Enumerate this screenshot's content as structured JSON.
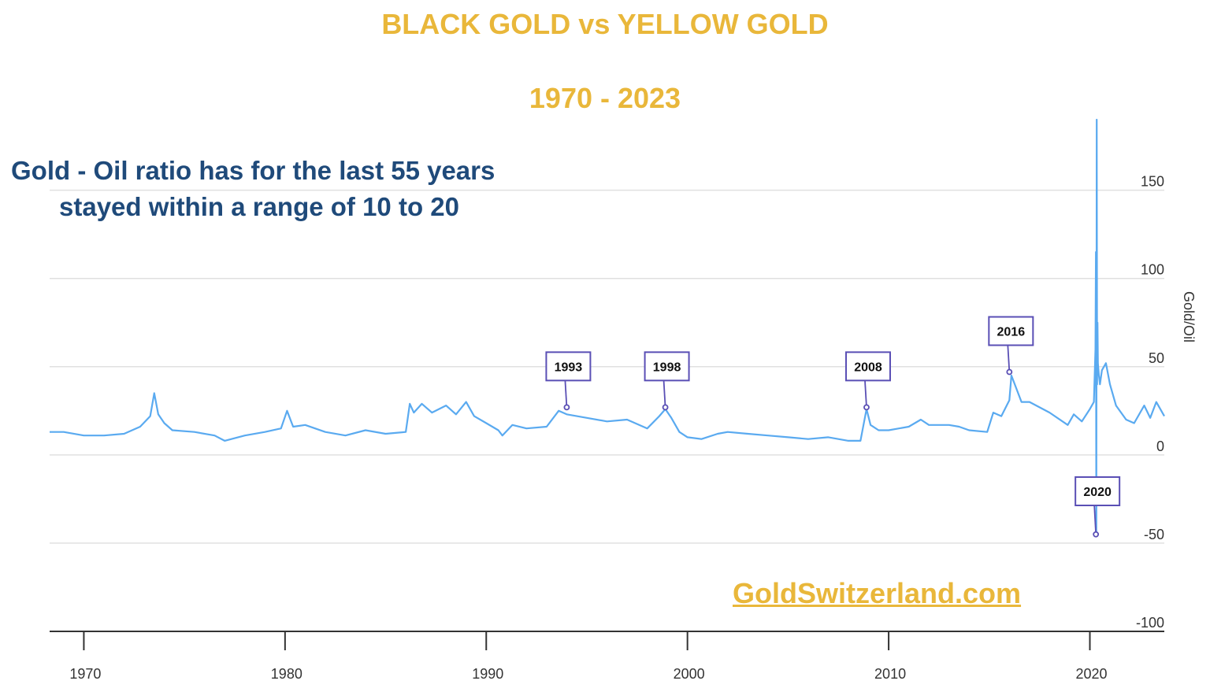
{
  "header": {
    "title": "BLACK GOLD vs YELLOW GOLD",
    "subtitle": "1970 - 2023"
  },
  "headline": {
    "line1": "Gold - Oil ratio has for the last 55 years",
    "line2": "stayed within a range of 10 to 20"
  },
  "brand": "GoldSwitzerland.com",
  "colors": {
    "title": "#e9b73a",
    "headline": "#1f4a7a",
    "series": "#5aaaf0",
    "annotation": "#5a4fb5",
    "grid": "#e0e0e0"
  },
  "chart_data": {
    "type": "line",
    "ylabel": "Gold/Oil",
    "xlim": [
      1968.3,
      2023.7
    ],
    "ylim": [
      -100,
      190
    ],
    "y_ticks": [
      150,
      100,
      50,
      0,
      -50,
      -100
    ],
    "x_ticks": [
      1970,
      1980,
      1990,
      2000,
      2010,
      2020
    ],
    "grid": true,
    "series": [
      {
        "name": "",
        "x": [
          1968.3,
          1969.0,
          1970.0,
          1971.0,
          1972.0,
          1972.8,
          1973.3,
          1973.5,
          1973.7,
          1974.0,
          1974.4,
          1975.5,
          1976.5,
          1977.0,
          1978.0,
          1979.0,
          1979.8,
          1980.1,
          1980.4,
          1981.0,
          1982.0,
          1983.0,
          1984.0,
          1985.0,
          1986.0,
          1986.2,
          1986.4,
          1986.8,
          1987.3,
          1988.0,
          1988.5,
          1989.0,
          1989.4,
          1990.0,
          1990.6,
          1990.8,
          1991.3,
          1992.0,
          1993.0,
          1993.6,
          1994.0,
          1995.0,
          1996.0,
          1997.0,
          1998.0,
          1998.6,
          1998.9,
          1999.2,
          1999.6,
          2000.0,
          2000.7,
          2001.5,
          2002.0,
          2003.0,
          2004.0,
          2005.0,
          2006.0,
          2007.0,
          2008.0,
          2008.6,
          2008.9,
          2009.1,
          2009.5,
          2010.0,
          2011.0,
          2011.6,
          2012.0,
          2013.0,
          2013.5,
          2014.0,
          2014.9,
          2015.2,
          2015.6,
          2016.0,
          2016.1,
          2016.6,
          2017.0,
          2018.0,
          2018.9,
          2019.2,
          2019.6,
          2020.0,
          2020.2,
          2020.28,
          2020.3,
          2020.32,
          2020.34,
          2020.36,
          2020.38,
          2020.4,
          2020.45,
          2020.5,
          2020.6,
          2020.8,
          2021.0,
          2021.3,
          2021.8,
          2022.2,
          2022.7,
          2023.0,
          2023.3,
          2023.7
        ],
        "y": [
          13,
          13,
          11,
          11,
          12,
          16,
          22,
          35,
          23,
          18,
          14,
          13,
          11,
          8,
          11,
          13,
          15,
          25,
          16,
          17,
          13,
          11,
          14,
          12,
          13,
          29,
          24,
          29,
          24,
          28,
          23,
          30,
          22,
          18,
          14,
          11,
          17,
          15,
          16,
          25,
          23,
          21,
          19,
          20,
          15,
          22,
          26,
          21,
          13,
          10,
          9,
          12,
          13,
          12,
          11,
          10,
          9,
          10,
          8,
          8,
          26,
          17,
          14,
          14,
          16,
          20,
          17,
          17,
          16,
          14,
          13,
          24,
          22,
          31,
          45,
          30,
          30,
          24,
          17,
          23,
          19,
          26,
          30,
          60,
          115,
          -45,
          190,
          40,
          75,
          52,
          45,
          40,
          48,
          52,
          40,
          28,
          20,
          18,
          28,
          21,
          30,
          22
        ]
      }
    ],
    "annotations": [
      {
        "label": "1993",
        "x": 1994.0,
        "y": 27
      },
      {
        "label": "1998",
        "x": 1998.9,
        "y": 27
      },
      {
        "label": "2008",
        "x": 2008.9,
        "y": 27
      },
      {
        "label": "2016",
        "x": 2016.0,
        "y": 47
      },
      {
        "label": "2020",
        "x": 2020.3,
        "y": -45
      }
    ]
  }
}
